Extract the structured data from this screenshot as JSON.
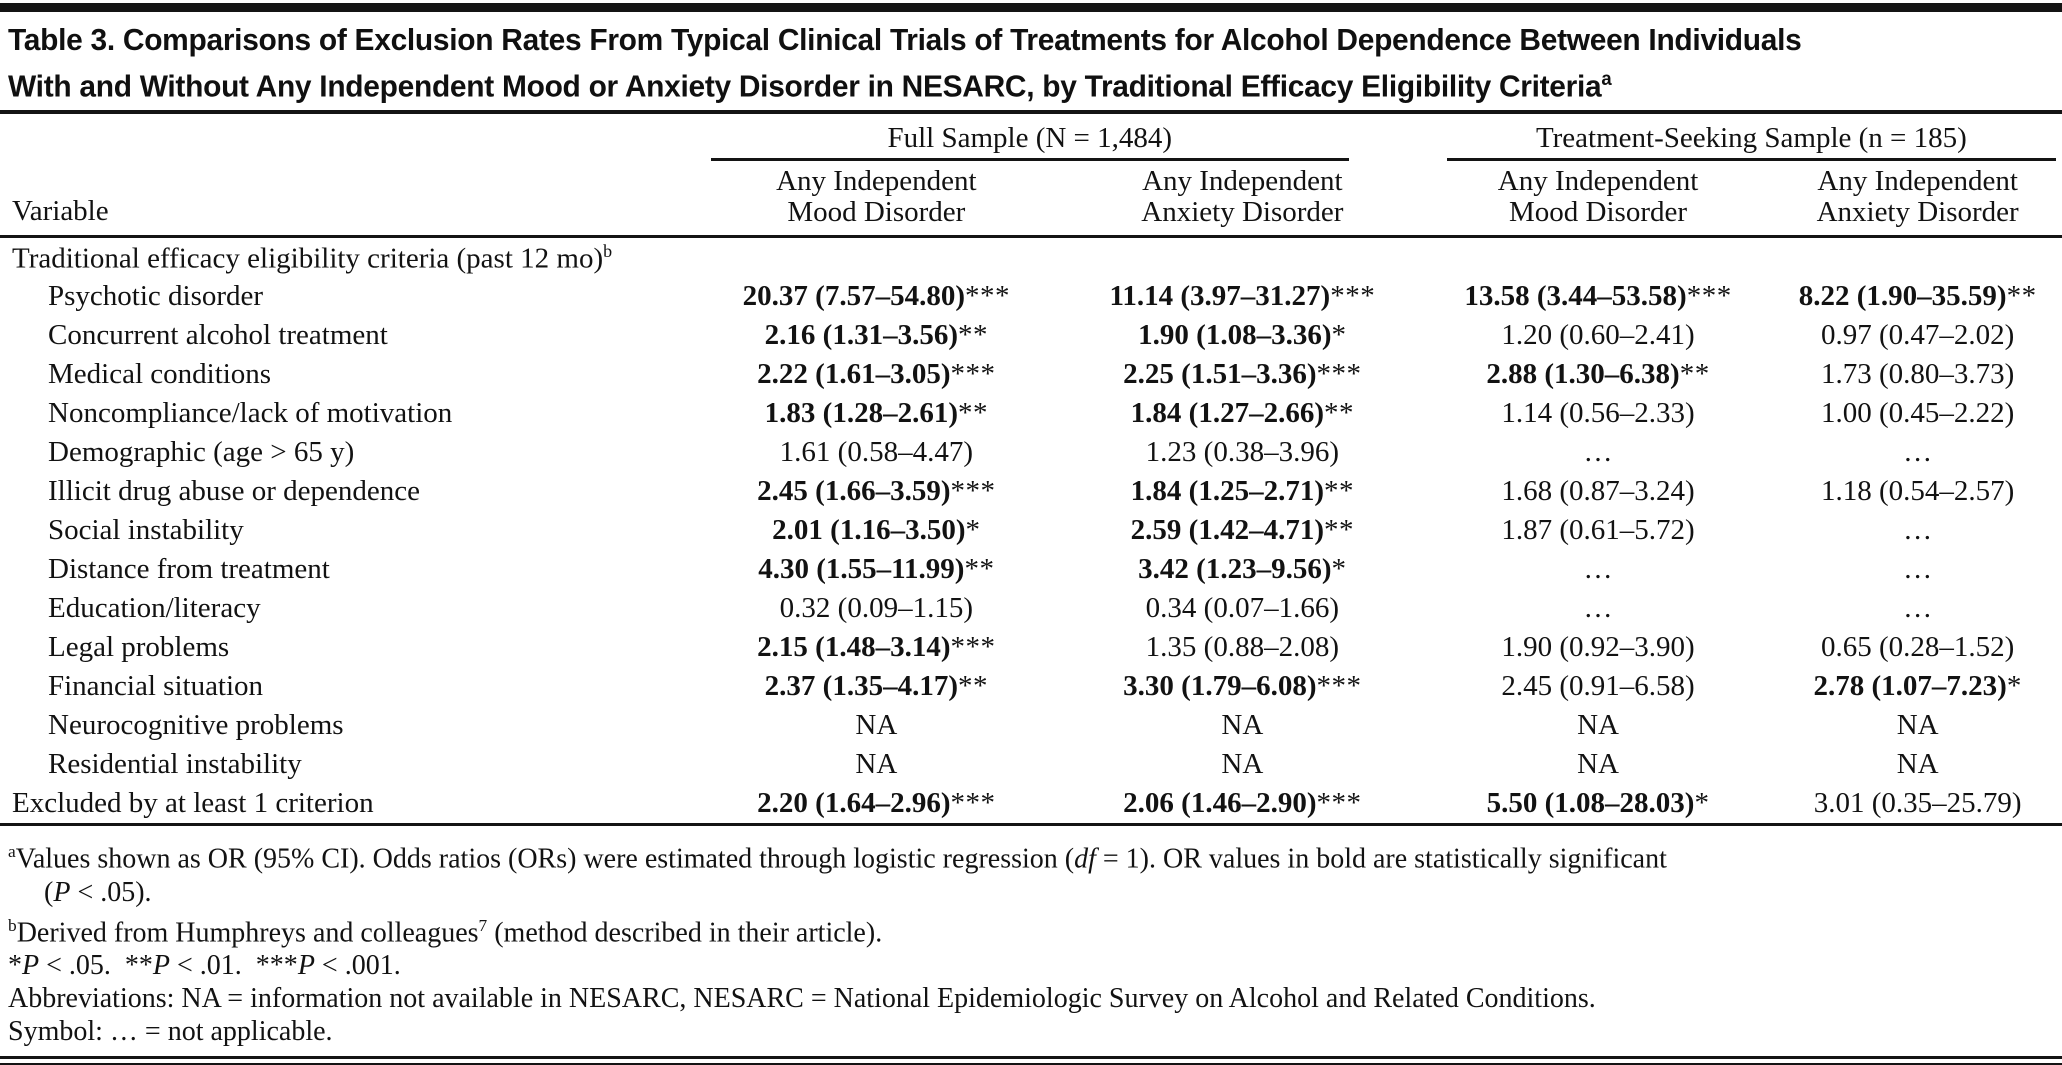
{
  "colors": {
    "rule": "#141414",
    "text": "#121212",
    "background": "#ffffff"
  },
  "title": {
    "line1": "Table 3. Comparisons of Exclusion Rates From Typical Clinical Trials of Treatments for Alcohol Dependence Between Individuals",
    "line2": "With and Without Any Independent Mood or Anxiety Disorder in NESARC, by Traditional Efficacy Eligibility Criteria",
    "superscript": "a"
  },
  "table": {
    "variable_header": "Variable",
    "groups": [
      {
        "label": "Full Sample (N = 1,484)"
      },
      {
        "label": "Treatment-Seeking Sample (n = 185)"
      }
    ],
    "columns": [
      {
        "line1": "Any Independent",
        "line2": "Mood Disorder"
      },
      {
        "line1": "Any Independent",
        "line2": "Anxiety Disorder"
      },
      {
        "line1": "Any Independent",
        "line2": "Mood Disorder"
      },
      {
        "line1": "Any Independent",
        "line2": "Anxiety Disorder"
      }
    ],
    "rows": [
      {
        "label": "Traditional efficacy eligibility criteria (past 12 mo)",
        "sup": "b",
        "indent": false,
        "section": true,
        "cells": null
      },
      {
        "label": "Psychotic disorder",
        "indent": true,
        "cells": [
          {
            "v": "20.37 (7.57–54.80)",
            "sig": "***",
            "bold": true
          },
          {
            "v": "11.14 (3.97–31.27)",
            "sig": "***",
            "bold": true
          },
          {
            "v": "13.58 (3.44–53.58)",
            "sig": "***",
            "bold": true
          },
          {
            "v": "8.22 (1.90–35.59)",
            "sig": "**",
            "bold": true
          }
        ]
      },
      {
        "label": "Concurrent alcohol treatment",
        "indent": true,
        "cells": [
          {
            "v": "2.16 (1.31–3.56)",
            "sig": "**",
            "bold": true
          },
          {
            "v": "1.90 (1.08–3.36)",
            "sig": "*",
            "bold": true
          },
          {
            "v": "1.20 (0.60–2.41)"
          },
          {
            "v": "0.97 (0.47–2.02)"
          }
        ]
      },
      {
        "label": "Medical conditions",
        "indent": true,
        "cells": [
          {
            "v": "2.22 (1.61–3.05)",
            "sig": "***",
            "bold": true
          },
          {
            "v": "2.25 (1.51–3.36)",
            "sig": "***",
            "bold": true
          },
          {
            "v": "2.88 (1.30–6.38)",
            "sig": "**",
            "bold": true
          },
          {
            "v": "1.73 (0.80–3.73)"
          }
        ]
      },
      {
        "label": "Noncompliance/lack of motivation",
        "indent": true,
        "cells": [
          {
            "v": "1.83 (1.28–2.61)",
            "sig": "**",
            "bold": true
          },
          {
            "v": "1.84 (1.27–2.66)",
            "sig": "**",
            "bold": true
          },
          {
            "v": "1.14 (0.56–2.33)"
          },
          {
            "v": "1.00 (0.45–2.22)"
          }
        ]
      },
      {
        "label": "Demographic (age > 65 y)",
        "indent": true,
        "cells": [
          {
            "v": "1.61 (0.58–4.47)"
          },
          {
            "v": "1.23 (0.38–3.96)"
          },
          {
            "v": "…"
          },
          {
            "v": "…"
          }
        ]
      },
      {
        "label": "Illicit drug abuse or dependence",
        "indent": true,
        "cells": [
          {
            "v": "2.45 (1.66–3.59)",
            "sig": "***",
            "bold": true
          },
          {
            "v": "1.84 (1.25–2.71)",
            "sig": "**",
            "bold": true
          },
          {
            "v": "1.68 (0.87–3.24)"
          },
          {
            "v": "1.18 (0.54–2.57)"
          }
        ]
      },
      {
        "label": "Social instability",
        "indent": true,
        "cells": [
          {
            "v": "2.01 (1.16–3.50)",
            "sig": "*",
            "bold": true
          },
          {
            "v": "2.59 (1.42–4.71)",
            "sig": "**",
            "bold": true
          },
          {
            "v": "1.87 (0.61–5.72)"
          },
          {
            "v": "…"
          }
        ]
      },
      {
        "label": "Distance from treatment",
        "indent": true,
        "cells": [
          {
            "v": "4.30 (1.55–11.99)",
            "sig": "**",
            "bold": true
          },
          {
            "v": "3.42 (1.23–9.56)",
            "sig": "*",
            "bold": true
          },
          {
            "v": "…"
          },
          {
            "v": "…"
          }
        ]
      },
      {
        "label": "Education/literacy",
        "indent": true,
        "cells": [
          {
            "v": "0.32 (0.09–1.15)"
          },
          {
            "v": "0.34 (0.07–1.66)"
          },
          {
            "v": "…"
          },
          {
            "v": "…"
          }
        ]
      },
      {
        "label": "Legal problems",
        "indent": true,
        "cells": [
          {
            "v": "2.15 (1.48–3.14)",
            "sig": "***",
            "bold": true
          },
          {
            "v": "1.35 (0.88–2.08)"
          },
          {
            "v": "1.90 (0.92–3.90)"
          },
          {
            "v": "0.65 (0.28–1.52)"
          }
        ]
      },
      {
        "label": "Financial situation",
        "indent": true,
        "cells": [
          {
            "v": "2.37 (1.35–4.17)",
            "sig": "**",
            "bold": true
          },
          {
            "v": "3.30 (1.79–6.08)",
            "sig": "***",
            "bold": true
          },
          {
            "v": "2.45 (0.91–6.58)"
          },
          {
            "v": "2.78 (1.07–7.23)",
            "sig": "*",
            "bold": true
          }
        ]
      },
      {
        "label": "Neurocognitive problems",
        "indent": true,
        "cells": [
          {
            "v": "NA"
          },
          {
            "v": "NA"
          },
          {
            "v": "NA"
          },
          {
            "v": "NA"
          }
        ]
      },
      {
        "label": "Residential instability",
        "indent": true,
        "cells": [
          {
            "v": "NA"
          },
          {
            "v": "NA"
          },
          {
            "v": "NA"
          },
          {
            "v": "NA"
          }
        ]
      },
      {
        "label": "Excluded by at least 1 criterion",
        "indent": false,
        "cells": [
          {
            "v": "2.20 (1.64–2.96)",
            "sig": "***",
            "bold": true
          },
          {
            "v": "2.06 (1.46–2.90)",
            "sig": "***",
            "bold": true
          },
          {
            "v": "5.50 (1.08–28.03)",
            "sig": "*",
            "bold": true
          },
          {
            "v": "3.01 (0.35–25.79)"
          }
        ]
      }
    ]
  },
  "footnotes": [
    {
      "name": "footnote-a",
      "indent": false,
      "segments": [
        {
          "t": "a",
          "s": "sup"
        },
        {
          "t": "Values shown as OR (95% CI). Odds ratios (ORs) were estimated through logistic regression ("
        },
        {
          "t": "df",
          "s": "i"
        },
        {
          "t": " = 1). OR values in bold are statistically significant"
        }
      ]
    },
    {
      "name": "footnote-a-continued",
      "indent": true,
      "segments": [
        {
          "t": "("
        },
        {
          "t": "P",
          "s": "i"
        },
        {
          "t": " < .05)."
        }
      ]
    },
    {
      "name": "footnote-b",
      "indent": false,
      "segments": [
        {
          "t": "b",
          "s": "sup"
        },
        {
          "t": "Derived from Humphreys and colleagues"
        },
        {
          "t": "7",
          "s": "sup"
        },
        {
          "t": " (method described in their article)."
        }
      ]
    },
    {
      "name": "footnote-significance-levels",
      "indent": false,
      "segments": [
        {
          "t": "*"
        },
        {
          "t": "P",
          "s": "i"
        },
        {
          "t": " < .05.  **"
        },
        {
          "t": "P",
          "s": "i"
        },
        {
          "t": " < .01.  ***"
        },
        {
          "t": "P",
          "s": "i"
        },
        {
          "t": " < .001."
        }
      ]
    },
    {
      "name": "footnote-abbreviations",
      "indent": false,
      "segments": [
        {
          "t": "Abbreviations: NA = information not available in NESARC, NESARC = National Epidemiologic Survey on Alcohol and Related Conditions."
        }
      ]
    },
    {
      "name": "footnote-symbol",
      "indent": false,
      "segments": [
        {
          "t": "Symbol: … = not applicable."
        }
      ]
    }
  ]
}
